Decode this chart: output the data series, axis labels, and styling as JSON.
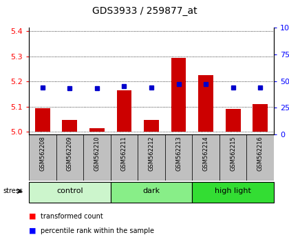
{
  "title": "GDS3933 / 259877_at",
  "samples": [
    "GSM562208",
    "GSM562209",
    "GSM562210",
    "GSM562211",
    "GSM562212",
    "GSM562213",
    "GSM562214",
    "GSM562215",
    "GSM562216"
  ],
  "transformed_count": [
    5.095,
    5.048,
    5.015,
    5.165,
    5.048,
    5.295,
    5.225,
    5.092,
    5.11
  ],
  "percentile_rank": [
    44,
    43,
    43,
    45,
    44,
    47,
    47,
    44,
    44
  ],
  "groups": [
    {
      "label": "control",
      "indices": [
        0,
        1,
        2
      ],
      "color": "#ccf0cc"
    },
    {
      "label": "dark",
      "indices": [
        3,
        4,
        5
      ],
      "color": "#88ee88"
    },
    {
      "label": "high light",
      "indices": [
        6,
        7,
        8
      ],
      "color": "#44cc44"
    }
  ],
  "ylim_left": [
    4.99,
    5.415
  ],
  "ylim_right": [
    0,
    100
  ],
  "yticks_left": [
    5.0,
    5.1,
    5.2,
    5.3,
    5.4
  ],
  "yticks_right": [
    0,
    25,
    50,
    75,
    100
  ],
  "bar_color": "#cc0000",
  "dot_color": "#0000cc",
  "bar_width": 0.55,
  "baseline": 5.0,
  "background_plot": "#ffffff",
  "background_xtick": "#c0c0c0",
  "group_colors": [
    "#ccf5cc",
    "#88ee88",
    "#33dd33"
  ]
}
